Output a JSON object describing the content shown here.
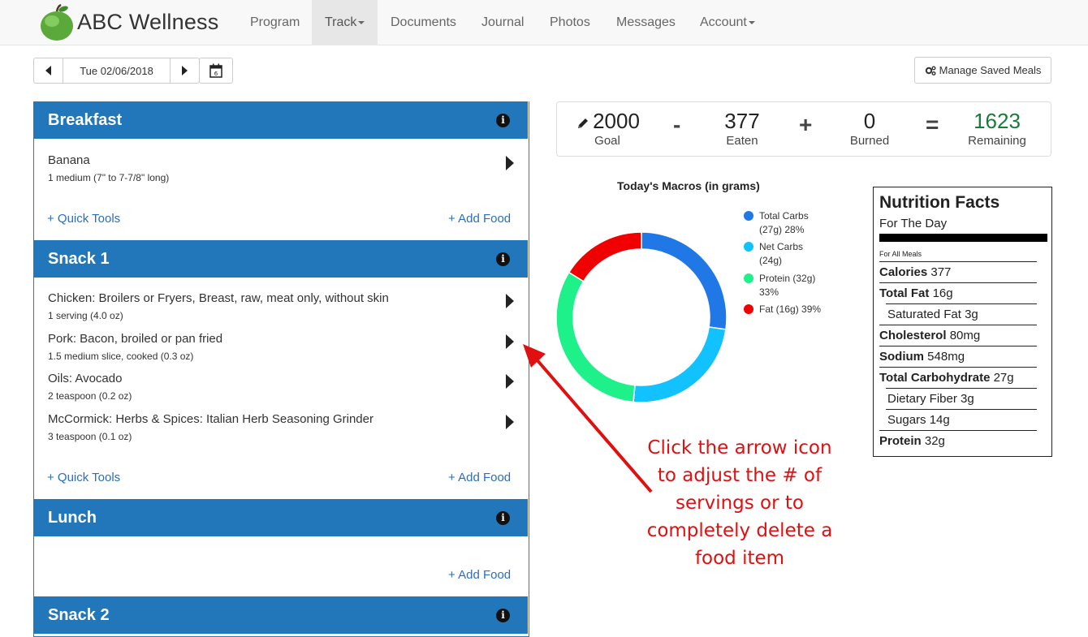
{
  "brand": "ABC Wellness",
  "nav": [
    {
      "label": "Program"
    },
    {
      "label": "Track"
    },
    {
      "label": "Documents"
    },
    {
      "label": "Journal"
    },
    {
      "label": "Photos"
    },
    {
      "label": "Messages"
    },
    {
      "label": "Account"
    }
  ],
  "date": "Tue 02/06/2018",
  "calendar_day": "6",
  "manage_saved_meals": "Manage Saved Meals",
  "meals": {
    "breakfast": {
      "title": "Breakfast",
      "foods": [
        {
          "name": "Banana",
          "serving": "1 medium (7\" to 7-7/8\" long)"
        }
      ],
      "quick_tools": "+ Quick Tools",
      "add_food": "+ Add Food"
    },
    "snack1": {
      "title": "Snack 1",
      "foods": [
        {
          "name": "Chicken: Broilers or Fryers, Breast, raw, meat only, without skin",
          "serving": "1 serving (4.0 oz)"
        },
        {
          "name": "Pork: Bacon, broiled or pan fried",
          "serving": "1.5 medium slice, cooked (0.3 oz)"
        },
        {
          "name": "Oils: Avocado",
          "serving": "2 teaspoon (0.2 oz)"
        },
        {
          "name": "McCormick: Herbs & Spices: Italian Herb Seasoning Grinder",
          "serving": "3 teaspoon (0.1 oz)"
        }
      ],
      "quick_tools": "+ Quick Tools",
      "add_food": "+ Add Food"
    },
    "lunch": {
      "title": "Lunch",
      "add_food": "+ Add Food"
    },
    "snack2": {
      "title": "Snack 2"
    }
  },
  "summary": {
    "goal_value": "2000",
    "goal_label": "Goal",
    "minus": "-",
    "eaten_value": "377",
    "eaten_label": "Eaten",
    "plus": "+",
    "burned_value": "0",
    "burned_label": "Burned",
    "equals": "=",
    "remaining_value": "1623",
    "remaining_label": "Remaining"
  },
  "chart_data": {
    "type": "pie",
    "title": "Today's Macros (in grams)",
    "legend_position": "right",
    "slices": [
      {
        "label": "Total Carbs (27g) 28%",
        "grams": 27,
        "percent": 28,
        "color": "#1f78e6"
      },
      {
        "label": "Net Carbs (24g)",
        "grams": 24,
        "color": "#12c2ff"
      },
      {
        "label": "Protein (32g) 33%",
        "grams": 32,
        "percent": 33,
        "color": "#1ef08a"
      },
      {
        "label": "Fat (16g) 39%",
        "grams": 16,
        "percent": 39,
        "color": "#f00000"
      }
    ],
    "legend": [
      {
        "line1": "Total Carbs",
        "line2": "(27g) 28%"
      },
      {
        "line1": "Net Carbs",
        "line2": "(24g)"
      },
      {
        "line1": "Protein (32g)",
        "line2": "33%"
      },
      {
        "line1": "Fat (16g) 39%",
        "line2": ""
      }
    ]
  },
  "nutrition": {
    "title": "Nutrition Facts",
    "subtitle": "For The Day",
    "scope": "For All Meals",
    "rows": [
      {
        "label": "Calories",
        "value": "377"
      },
      {
        "label": "Total Fat",
        "value": "16g"
      },
      {
        "label": "Saturated Fat",
        "value": "3g"
      },
      {
        "label": "Cholesterol",
        "value": "80mg"
      },
      {
        "label": "Sodium",
        "value": "548mg"
      },
      {
        "label": "Total Carbohydrate",
        "value": "27g"
      },
      {
        "label": "Dietary Fiber",
        "value": "3g"
      },
      {
        "label": "Sugars",
        "value": "14g"
      },
      {
        "label": "Protein",
        "value": "32g"
      }
    ]
  },
  "annotation": {
    "lines": [
      "Click the arrow icon",
      "to adjust the # of",
      "servings or to",
      "completely delete a",
      "food item"
    ]
  },
  "colors": {
    "meal_header": "#2277bb",
    "remaining": "#1a7a3a",
    "annotation": "#e01010",
    "link": "#2a6ebb"
  }
}
